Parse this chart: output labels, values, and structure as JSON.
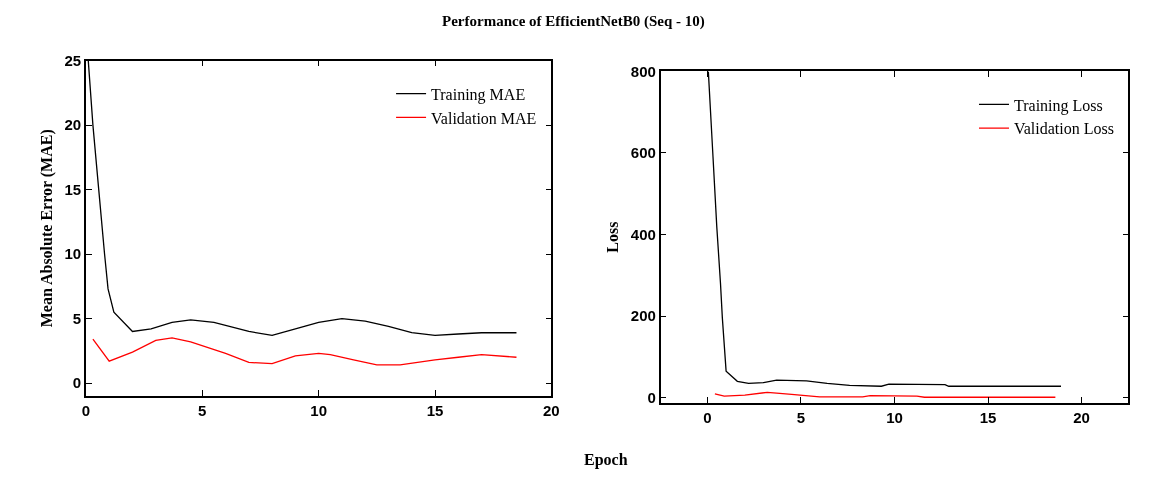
{
  "chart_data": [
    {
      "type": "line",
      "title": "Performance of EfficientNetB0 (Seq - 10)",
      "xlabel": "Epoch",
      "ylabel": "Mean Absolute Error (MAE)",
      "xlim": [
        0,
        20
      ],
      "xticks": [
        0,
        5,
        10,
        15,
        20
      ],
      "ylim": [
        -1,
        25
      ],
      "yticks": [
        0,
        5,
        10,
        15,
        20,
        25
      ],
      "legend": "top right",
      "line_style": "solid",
      "marker": "none",
      "series": [
        {
          "name": "Training MAE",
          "color": "#000000",
          "x": [
            0.1,
            0.3,
            0.55,
            0.8,
            0.95,
            1.2,
            2.0,
            2.8,
            3.7,
            4.5,
            5.5,
            7,
            8,
            9,
            10,
            11,
            12,
            13,
            14,
            15,
            16,
            17,
            18.5
          ],
          "values": [
            25,
            20,
            15,
            10,
            7.3,
            5.5,
            4.0,
            4.2,
            4.7,
            4.9,
            4.7,
            4.0,
            3.7,
            4.2,
            4.7,
            5.0,
            4.8,
            4.4,
            3.9,
            3.7,
            3.8,
            3.9,
            3.9
          ]
        },
        {
          "name": "Validation MAE",
          "color": "#ff0000",
          "x": [
            0.3,
            1.0,
            2,
            3,
            3.7,
            4.5,
            6,
            7,
            8,
            9,
            10,
            10.5,
            11.5,
            12.5,
            13.5,
            15,
            16,
            17,
            18.5
          ],
          "values": [
            3.4,
            1.7,
            2.4,
            3.3,
            3.5,
            3.2,
            2.3,
            1.6,
            1.5,
            2.1,
            2.3,
            2.2,
            1.8,
            1.4,
            1.4,
            1.8,
            2.0,
            2.2,
            2.0
          ]
        }
      ]
    },
    {
      "type": "line",
      "ylabel": "Loss",
      "xlim": [
        -2.5,
        22.5
      ],
      "xticks": [
        0,
        5,
        10,
        15,
        20
      ],
      "ylim": [
        -13,
        800
      ],
      "yticks": [
        0,
        200,
        400,
        600,
        800
      ],
      "legend": "top right",
      "line_style": "solid",
      "marker": "none",
      "series": [
        {
          "name": "Training Loss",
          "color": "#000000",
          "x": [
            0.05,
            0.3,
            0.5,
            0.7,
            0.8,
            1.0,
            1.6,
            2.2,
            3,
            3.7,
            5.3,
            6.4,
            7.6,
            9.3,
            9.7,
            12.7,
            12.9,
            18.9
          ],
          "values": [
            800,
            590,
            420,
            280,
            195,
            65,
            40,
            35,
            37,
            43,
            41,
            35,
            30,
            28,
            33,
            32,
            28,
            28
          ]
        },
        {
          "name": "Validation Loss",
          "color": "#ff0000",
          "x": [
            0.4,
            0.9,
            2,
            3.2,
            3.7,
            4.5,
            6,
            8.3,
            8.7,
            11.2,
            11.6,
            18.6
          ],
          "values": [
            9,
            4,
            6,
            13,
            11,
            8,
            2,
            2,
            5,
            4,
            1,
            1
          ]
        }
      ]
    }
  ]
}
